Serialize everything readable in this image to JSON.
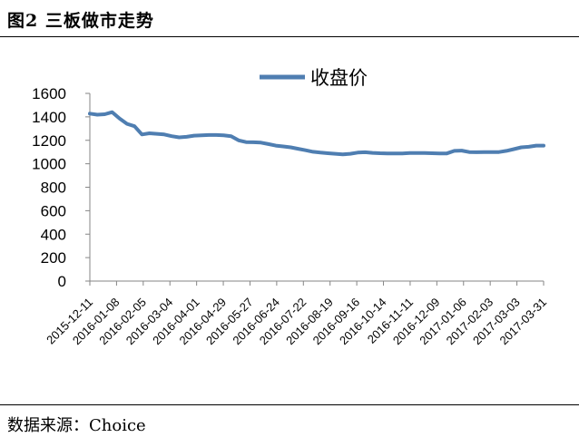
{
  "header": {
    "title": "图2 三板做市走势"
  },
  "footer": {
    "source": "数据来源：Choice"
  },
  "chart_data": {
    "type": "line",
    "title": "",
    "xlabel": "",
    "ylabel": "",
    "ylim": [
      0,
      1600
    ],
    "yticks": [
      0,
      200,
      400,
      600,
      800,
      1000,
      1200,
      1400,
      1600
    ],
    "grid": false,
    "legend_position": "top-center",
    "x_tick_labels": [
      "2015-12-11",
      "2016-01-08",
      "2016-02-05",
      "2016-03-04",
      "2016-04-01",
      "2016-04-29",
      "2016-05-27",
      "2016-06-24",
      "2016-07-22",
      "2016-08-19",
      "2016-09-16",
      "2016-10-14",
      "2016-11-11",
      "2016-12-09",
      "2017-01-06",
      "2017-02-03",
      "2017-03-03",
      "2017-03-31"
    ],
    "series": [
      {
        "name": "收盘价",
        "color": "#4f7eb1",
        "values": [
          1428,
          1418,
          1422,
          1440,
          1385,
          1340,
          1320,
          1250,
          1260,
          1255,
          1250,
          1235,
          1225,
          1230,
          1240,
          1243,
          1245,
          1245,
          1242,
          1235,
          1200,
          1185,
          1183,
          1180,
          1168,
          1155,
          1148,
          1140,
          1128,
          1115,
          1102,
          1095,
          1090,
          1085,
          1080,
          1085,
          1095,
          1098,
          1093,
          1090,
          1088,
          1088,
          1088,
          1092,
          1092,
          1092,
          1090,
          1088,
          1088,
          1110,
          1112,
          1100,
          1098,
          1100,
          1100,
          1100,
          1110,
          1125,
          1140,
          1145,
          1155,
          1155
        ]
      }
    ]
  }
}
